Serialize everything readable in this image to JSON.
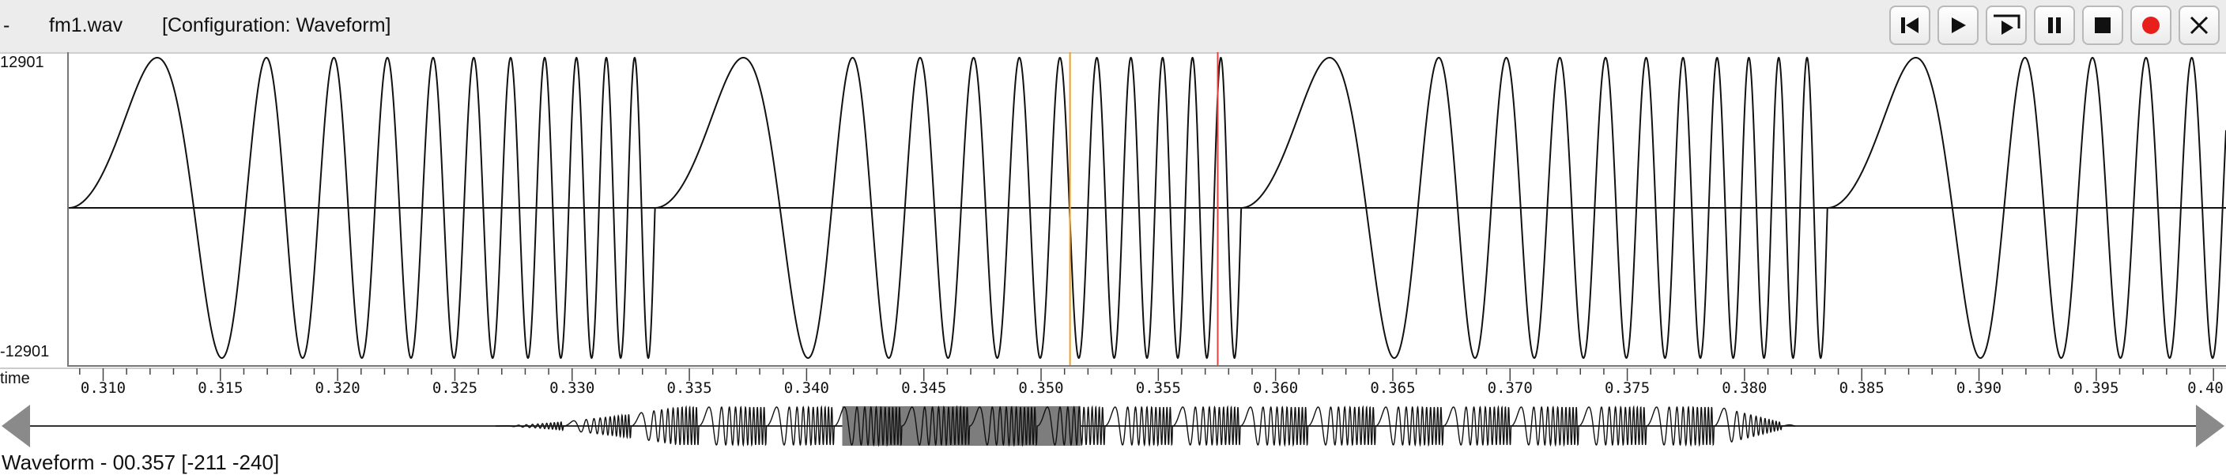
{
  "titlebar": {
    "menu_dash": "-",
    "filename": "fm1.wav",
    "configuration": "[Configuration: Waveform]",
    "buttons": [
      {
        "name": "skip-to-start-button",
        "icon": "skip-to-start-icon"
      },
      {
        "name": "play-button",
        "icon": "play-icon"
      },
      {
        "name": "play-selection-button",
        "icon": "play-selection-icon"
      },
      {
        "name": "pause-button",
        "icon": "pause-icon"
      },
      {
        "name": "stop-button",
        "icon": "stop-icon"
      },
      {
        "name": "record-button",
        "icon": "record-icon",
        "color": "#e8201c"
      },
      {
        "name": "close-button",
        "icon": "close-icon"
      }
    ]
  },
  "waveform": {
    "amp_max_label": "12901",
    "amp_min_label": "-12901",
    "time_start": 0.3085,
    "time_end": 0.4005,
    "cursor_orange_time": 0.3512,
    "cursor_red_time": 0.3575,
    "cursor_orange_color": "#f0a020",
    "cursor_red_color": "#e84040"
  },
  "ruler": {
    "label": "time",
    "ticks": [
      "0.310",
      "0.315",
      "0.320",
      "0.325",
      "0.330",
      "0.335",
      "0.340",
      "0.345",
      "0.350",
      "0.355",
      "0.360",
      "0.365",
      "0.370",
      "0.375",
      "0.380",
      "0.385",
      "0.390",
      "0.395",
      "0.40"
    ]
  },
  "overview": {
    "selection_start_fraction": 0.375,
    "selection_end_fraction": 0.485
  },
  "status": {
    "text": "Waveform - 00.357 [-211 -240]"
  }
}
